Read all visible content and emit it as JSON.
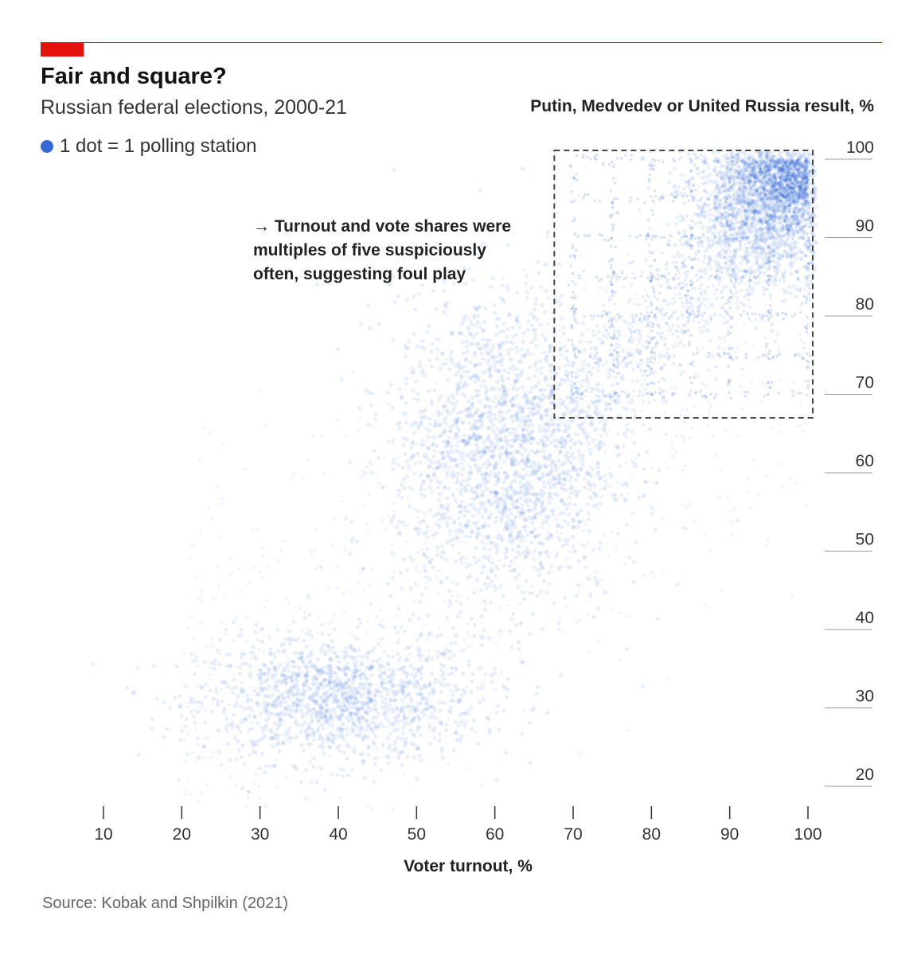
{
  "header": {
    "title": "Fair and square?",
    "subtitle": "Russian federal elections, 2000-21",
    "legend_label": "1 dot = 1 polling station"
  },
  "annotation": "→ Turnout and vote shares were multiples of five suspiciously often, suggesting foul play",
  "source": "Source: Kobak and Shpilkin (2021)",
  "colors": {
    "accent": "#e3120b",
    "dots": "#3568d4"
  },
  "chart_data": {
    "type": "scatter",
    "title": "Fair and square?",
    "subtitle": "Russian federal elections, 2000-21",
    "xlabel": "Voter turnout, %",
    "ylabel": "Putin, Medvedev or United Russia result, %",
    "xlim": [
      10,
      100
    ],
    "ylim": [
      20,
      100
    ],
    "xticks": [
      10,
      20,
      30,
      40,
      50,
      60,
      70,
      80,
      90,
      100
    ],
    "yticks": [
      20,
      30,
      40,
      50,
      60,
      70,
      80,
      90,
      100
    ],
    "grid": false,
    "y_axis_side": "right",
    "clusters": [
      {
        "center_turnout": 40,
        "center_result": 31,
        "spread_turnout": 9,
        "spread_result": 4,
        "density": "medium"
      },
      {
        "center_turnout": 61,
        "center_result": 63,
        "spread_turnout": 7,
        "spread_result": 10,
        "density": "high"
      },
      {
        "center_turnout": 95,
        "center_result": 95,
        "spread_turnout": 5,
        "spread_result": 5,
        "density": "high"
      }
    ],
    "highlight_box": {
      "turnout": [
        68,
        100
      ],
      "result": [
        67,
        100
      ]
    }
  }
}
